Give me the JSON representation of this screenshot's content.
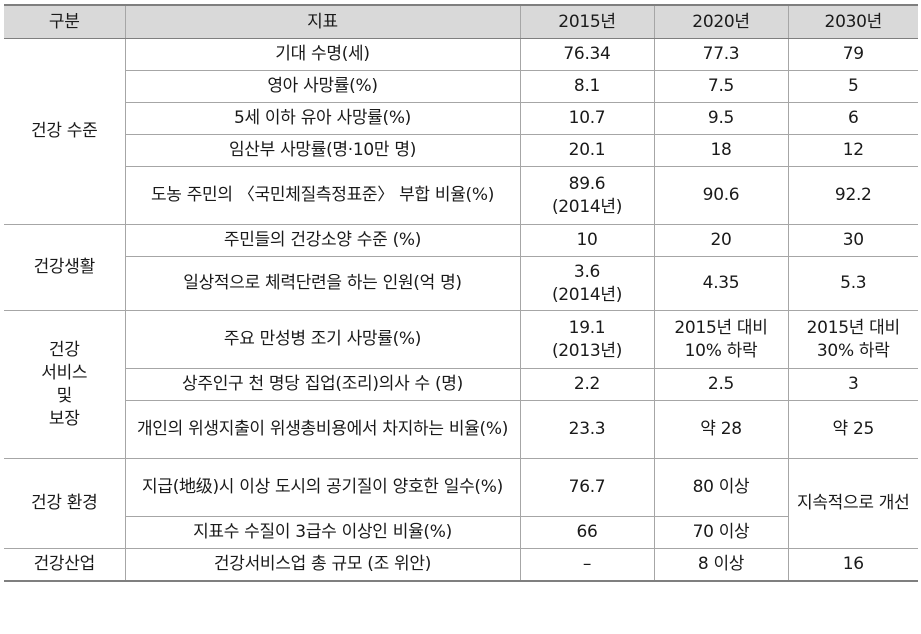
{
  "header": {
    "category": "구분",
    "indicator": "지표",
    "y2015": "2015년",
    "y2020": "2020년",
    "y2030": "2030년"
  },
  "groups": {
    "health_level": "건강 수준",
    "health_life": "건강생활",
    "health_service": [
      "건강",
      "서비스",
      "및",
      "보장"
    ],
    "health_env": "건강 환경",
    "health_industry": "건강산업"
  },
  "rows": [
    {
      "indicator": "기대 수명(세)",
      "y2015": "76.34",
      "y2020": "77.3",
      "y2030": "79"
    },
    {
      "indicator": "영아 사망률(%)",
      "y2015": "8.1",
      "y2020": "7.5",
      "y2030": "5"
    },
    {
      "indicator": "5세 이하 유아 사망률(%)",
      "y2015": "10.7",
      "y2020": "9.5",
      "y2030": "6"
    },
    {
      "indicator": "임산부 사망률(명·10만 명)",
      "y2015": "20.1",
      "y2020": "18",
      "y2030": "12"
    },
    {
      "indicator": "도농 주민의 〈국민체질측정표준〉 부합 비율(%)",
      "y2015": "89.6",
      "y2015_note": "(2014년)",
      "y2020": "90.6",
      "y2030": "92.2"
    },
    {
      "indicator": "주민들의 건강소양 수준 (%)",
      "y2015": "10",
      "y2020": "20",
      "y2030": "30"
    },
    {
      "indicator": "일상적으로 체력단련을 하는 인원(억 명)",
      "y2015": "3.6",
      "y2015_note": "(2014년)",
      "y2020": "4.35",
      "y2030": "5.3"
    },
    {
      "indicator": "주요 만성병 조기 사망률(%)",
      "y2015": "19.1",
      "y2015_note": "(2013년)",
      "y2020": "2015년 대비",
      "y2020_2": "10% 하락",
      "y2030": "2015년 대비",
      "y2030_2": "30% 하락"
    },
    {
      "indicator": "상주인구 천 명당 집업(조리)의사 수 (명)",
      "y2015": "2.2",
      "y2020": "2.5",
      "y2030": "3"
    },
    {
      "indicator": "개인의 위생지출이 위생총비용에서 차지하는 비율(%)",
      "y2015": "23.3",
      "y2020": "약 28",
      "y2030": "약 25"
    },
    {
      "indicator": "지급(地级)시 이상 도시의 공기질이 양호한 일수(%)",
      "y2015": "76.7",
      "y2020": "80 이상",
      "y2030": "지속적으로 개선"
    },
    {
      "indicator": "지표수 수질이 3급수 이상인 비율(%)",
      "y2015": "66",
      "y2020": "70 이상"
    },
    {
      "indicator": "건강서비스업 총 규모 (조 위안)",
      "y2015": "–",
      "y2020": "8 이상",
      "y2030": "16"
    }
  ]
}
